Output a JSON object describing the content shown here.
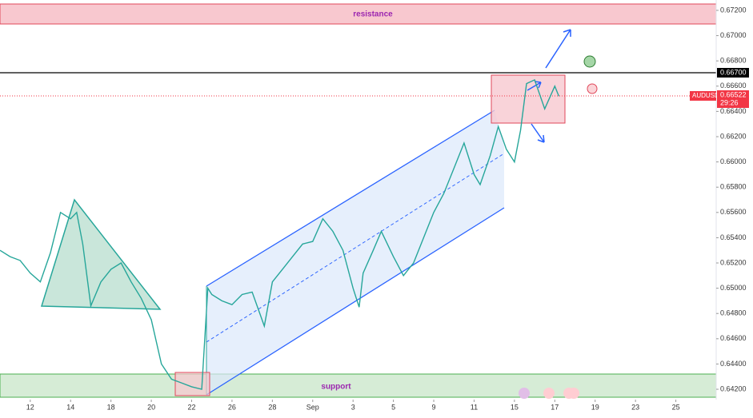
{
  "chart_data": {
    "type": "line",
    "x": [
      -1.5,
      -1,
      -0.5,
      0,
      0.5,
      1,
      1.5,
      2,
      2.3,
      2.6,
      3,
      3.5,
      4,
      4.5,
      5,
      5.5,
      6,
      6.5,
      7,
      7.5,
      8,
      8.5,
      8.8,
      9,
      9.5,
      10,
      10.5,
      11,
      11.6,
      12,
      12.5,
      13,
      13.5,
      14,
      14.5,
      15,
      15.5,
      16,
      16.3,
      16.5,
      17,
      17.4,
      18,
      18.5,
      19,
      19.5,
      20,
      20.5,
      21,
      21.5,
      22,
      22.3,
      22.8,
      23.2,
      23.6,
      24,
      24.3,
      24.6,
      25,
      25.5,
      26,
      26.2
    ],
    "values": [
      0.653,
      0.6525,
      0.6522,
      0.6512,
      0.6505,
      0.6528,
      0.656,
      0.6555,
      0.656,
      0.6535,
      0.6486,
      0.6505,
      0.6515,
      0.652,
      0.6505,
      0.6492,
      0.6475,
      0.644,
      0.6428,
      0.6425,
      0.6422,
      0.642,
      0.65,
      0.6495,
      0.649,
      0.6487,
      0.6495,
      0.6497,
      0.647,
      0.6505,
      0.6515,
      0.6525,
      0.6535,
      0.6537,
      0.6555,
      0.6545,
      0.653,
      0.65,
      0.6485,
      0.6512,
      0.653,
      0.6545,
      0.6525,
      0.651,
      0.652,
      0.654,
      0.656,
      0.6575,
      0.6595,
      0.6615,
      0.659,
      0.6582,
      0.6605,
      0.6628,
      0.661,
      0.66,
      0.6625,
      0.6662,
      0.6665,
      0.6642,
      0.666,
      0.6652
    ],
    "color": "#26a69a",
    "xlim": [
      -1.5,
      34
    ],
    "xticks": [
      {
        "value": 0,
        "label": "12"
      },
      {
        "value": 2,
        "label": "14"
      },
      {
        "value": 4,
        "label": "18"
      },
      {
        "value": 6,
        "label": "20"
      },
      {
        "value": 8,
        "label": "22"
      },
      {
        "value": 10,
        "label": "26"
      },
      {
        "value": 12,
        "label": "28"
      },
      {
        "value": 14,
        "label": "Sep"
      },
      {
        "value": 16,
        "label": "3"
      },
      {
        "value": 18,
        "label": "5"
      },
      {
        "value": 20,
        "label": "9"
      },
      {
        "value": 22,
        "label": "11"
      },
      {
        "value": 24,
        "label": "15"
      },
      {
        "value": 26,
        "label": "17"
      },
      {
        "value": 28,
        "label": "19"
      },
      {
        "value": 30,
        "label": "23"
      },
      {
        "value": 32,
        "label": "25"
      }
    ],
    "ylim": [
      0.64118,
      0.67282
    ],
    "yticks": [
      {
        "value": 0.642,
        "label": "0.64200"
      },
      {
        "value": 0.644,
        "label": "0.64400"
      },
      {
        "value": 0.646,
        "label": "0.64600"
      },
      {
        "value": 0.648,
        "label": "0.64800"
      },
      {
        "value": 0.65,
        "label": "0.65000"
      },
      {
        "value": 0.652,
        "label": "0.65200"
      },
      {
        "value": 0.654,
        "label": "0.65400"
      },
      {
        "value": 0.656,
        "label": "0.65600"
      },
      {
        "value": 0.658,
        "label": "0.65800"
      },
      {
        "value": 0.66,
        "label": "0.66000"
      },
      {
        "value": 0.662,
        "label": "0.66200"
      },
      {
        "value": 0.664,
        "label": "0.66400"
      },
      {
        "value": 0.666,
        "label": "0.66600"
      },
      {
        "value": 0.668,
        "label": "0.66800"
      },
      {
        "value": 0.67,
        "label": "0.67000"
      },
      {
        "value": 0.672,
        "label": "0.67200"
      }
    ],
    "annotations": {
      "resistance": "resistance",
      "support": "support",
      "level": "0.66700",
      "symbol": "AUDUSD",
      "price": "0.66522",
      "timer": "29:26"
    }
  }
}
